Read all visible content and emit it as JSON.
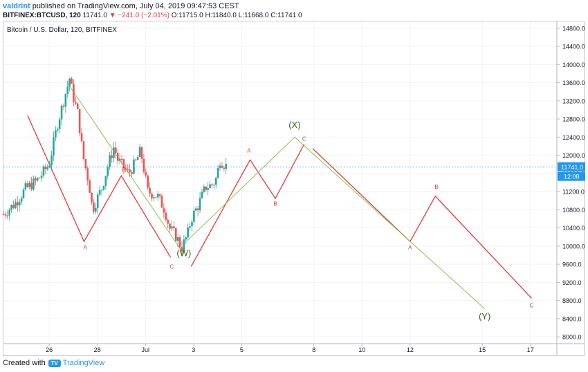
{
  "header": {
    "author": "valdrint",
    "published": "published on TradingView.com, July 04, 2019 09:47:53 CEST",
    "symbol": "BITFINEX:BTCUSD, 120",
    "last": "11741.0",
    "change": "▼ −241.0 (−2.01%)",
    "o_label": "O:",
    "o_value": "11715.0",
    "h_label": "H:",
    "h_value": "11840.0",
    "l_label": "L:",
    "l_value": "11668.0",
    "c_label": "C:",
    "c_value": "11741.0"
  },
  "footer": {
    "created_with": "Created with",
    "brand": "TradingView",
    "logo": "TV"
  },
  "colors": {
    "up": "#26a69a",
    "down": "#ef5350",
    "wave_red": "#e53935",
    "wave_green": "#8bc34a",
    "label_green": "#33691e",
    "price_tag": "#2196f3"
  },
  "chart_data": {
    "type": "candlestick",
    "title": "Bitcoin / U.S. Dollar, 120, BITFINEX",
    "y_ticks": [
      14800,
      14400,
      14000,
      13600,
      13200,
      12800,
      12400,
      12000,
      11600,
      11200,
      10800,
      10400,
      10000,
      9600,
      9200,
      8800,
      8400,
      8000
    ],
    "ylim": [
      7850,
      14950
    ],
    "y_tick_labels": [
      "14800.0",
      "14400.0",
      "14000.0",
      "13600.0",
      "13200.0",
      "12800.0",
      "12400.0",
      "12000.0",
      "11600.0",
      "11200.0",
      "10800.0",
      "10400.0",
      "10000.0",
      "9600.0",
      "9200.0",
      "8800.0",
      "8400.0",
      "8000.0"
    ],
    "x_ticks": [
      {
        "label": "26",
        "day": 26
      },
      {
        "label": "28",
        "day": 28
      },
      {
        "label": "Jul",
        "day": 30
      },
      {
        "label": "3",
        "day": 32
      },
      {
        "label": "5",
        "day": 34
      },
      {
        "label": "8",
        "day": 37
      },
      {
        "label": "10",
        "day": 39
      },
      {
        "label": "12",
        "day": 41
      },
      {
        "label": "15",
        "day": 44
      },
      {
        "label": "17",
        "day": 46
      }
    ],
    "xlim": [
      24.1,
      47.1
    ],
    "price_tag": {
      "value": 11741.0,
      "label": "11741.0",
      "countdown": "12:08"
    },
    "candle_path": [
      [
        24.1,
        10700
      ],
      [
        24.6,
        10950
      ],
      [
        25.0,
        11250
      ],
      [
        25.5,
        11450
      ],
      [
        26.0,
        11800
      ],
      [
        26.35,
        12700
      ],
      [
        26.6,
        13200
      ],
      [
        26.85,
        13700
      ],
      [
        27.0,
        13300
      ],
      [
        27.2,
        12900
      ],
      [
        27.4,
        12000
      ],
      [
        27.65,
        11400
      ],
      [
        27.8,
        10800
      ],
      [
        28.0,
        11050
      ],
      [
        28.2,
        11300
      ],
      [
        28.4,
        11700
      ],
      [
        28.7,
        12200
      ],
      [
        28.85,
        11900
      ],
      [
        29.0,
        11800
      ],
      [
        29.3,
        11600
      ],
      [
        29.6,
        11850
      ],
      [
        29.8,
        12100
      ],
      [
        30.1,
        11200
      ],
      [
        30.5,
        11100
      ],
      [
        30.8,
        10800
      ],
      [
        31.0,
        10400
      ],
      [
        31.3,
        10200
      ],
      [
        31.5,
        9950
      ],
      [
        31.75,
        10250
      ],
      [
        31.9,
        10600
      ],
      [
        32.2,
        10900
      ],
      [
        32.5,
        11300
      ],
      [
        32.8,
        11350
      ],
      [
        32.95,
        11500
      ],
      [
        33.1,
        11900
      ],
      [
        33.4,
        11741
      ]
    ],
    "wave_labels": [
      {
        "text": "A",
        "day": 27.5,
        "value": 9930,
        "color": "red"
      },
      {
        "text": "B",
        "day": 29.1,
        "value": 11640,
        "color": "red"
      },
      {
        "text": "C",
        "day": 31.1,
        "value": 9500,
        "color": "red"
      },
      {
        "text": "(W)",
        "day": 31.6,
        "value": 9780,
        "color": "green"
      },
      {
        "text": "A",
        "day": 34.3,
        "value": 12060,
        "color": "red"
      },
      {
        "text": "B",
        "day": 35.4,
        "value": 10890,
        "color": "red"
      },
      {
        "text": "(X)",
        "day": 36.2,
        "value": 12600,
        "color": "green"
      },
      {
        "text": "C",
        "day": 36.6,
        "value": 12320,
        "color": "red"
      },
      {
        "text": "A",
        "day": 41.0,
        "value": 9930,
        "color": "red"
      },
      {
        "text": "B",
        "day": 42.1,
        "value": 11260,
        "color": "red"
      },
      {
        "text": "(Y)",
        "day": 44.1,
        "value": 8380,
        "color": "green"
      },
      {
        "text": "C",
        "day": 46.05,
        "value": 8650,
        "color": "red"
      }
    ],
    "wave_lines": [
      {
        "color": "red",
        "points": [
          [
            25.1,
            12880
          ],
          [
            27.45,
            10100
          ],
          [
            29.0,
            11550
          ],
          [
            31.05,
            9750
          ]
        ]
      },
      {
        "color": "red",
        "points": [
          [
            31.9,
            9550
          ],
          [
            34.35,
            11900
          ],
          [
            35.4,
            11050
          ],
          [
            36.6,
            12250
          ]
        ]
      },
      {
        "color": "red",
        "points": [
          [
            36.95,
            12150
          ],
          [
            41.0,
            10100
          ],
          [
            42.05,
            11100
          ],
          [
            46.05,
            8850
          ]
        ]
      },
      {
        "color": "green",
        "points": [
          [
            26.75,
            13600
          ],
          [
            31.6,
            9820
          ]
        ]
      },
      {
        "color": "green",
        "points": [
          [
            31.7,
            10100
          ],
          [
            36.2,
            12400
          ]
        ]
      },
      {
        "color": "green",
        "points": [
          [
            36.2,
            12400
          ],
          [
            44.1,
            8620
          ]
        ]
      }
    ]
  }
}
